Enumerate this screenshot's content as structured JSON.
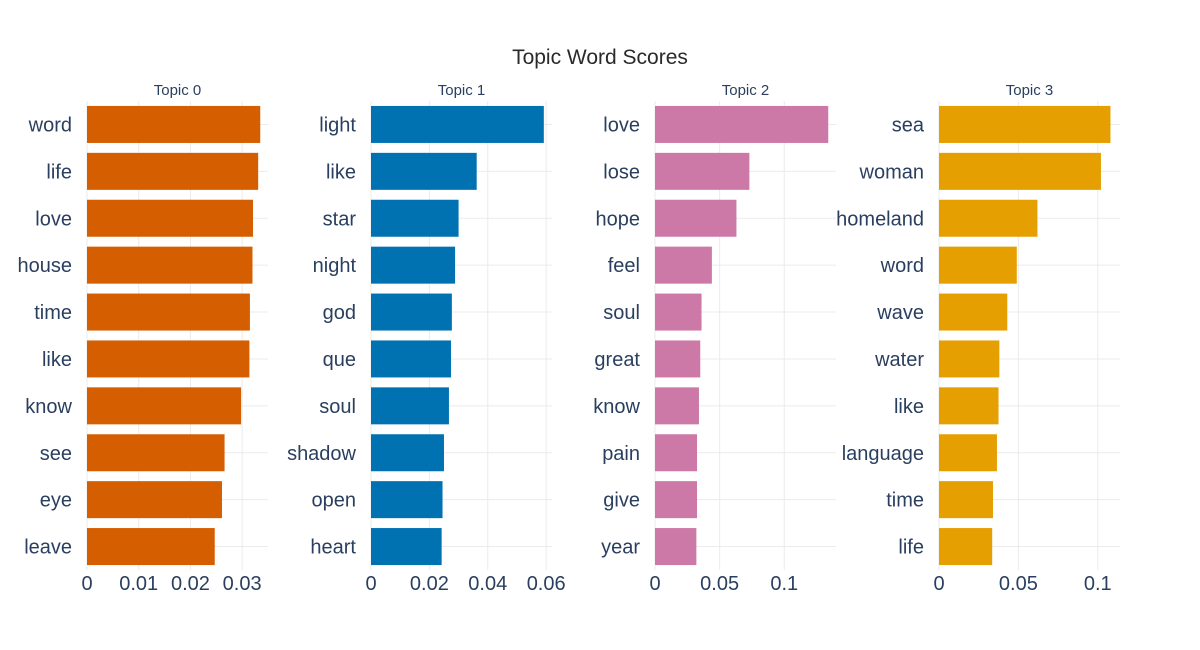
{
  "chart_data": {
    "type": "bar",
    "orientation": "horizontal",
    "title": "Topic Word Scores",
    "grid": true,
    "panels": [
      {
        "subtitle": "Topic 0",
        "color": "#D55E00",
        "categories": [
          "word",
          "life",
          "love",
          "house",
          "time",
          "like",
          "know",
          "see",
          "eye",
          "leave"
        ],
        "values": [
          0.0335,
          0.0331,
          0.0321,
          0.032,
          0.0315,
          0.0314,
          0.0298,
          0.0266,
          0.0261,
          0.0247
        ],
        "xlim": [
          0,
          0.035
        ],
        "xticks": [
          0,
          0.01,
          0.02,
          0.03
        ],
        "xtick_labels": [
          "0",
          "0.01",
          "0.02",
          "0.03"
        ]
      },
      {
        "subtitle": "Topic 1",
        "color": "#0072B2",
        "categories": [
          "light",
          "like",
          "star",
          "night",
          "god",
          "que",
          "soul",
          "shadow",
          "open",
          "heart"
        ],
        "values": [
          0.0592,
          0.0362,
          0.03,
          0.0288,
          0.0277,
          0.0274,
          0.0267,
          0.025,
          0.0245,
          0.0242
        ],
        "xlim": [
          0,
          0.062
        ],
        "xticks": [
          0,
          0.02,
          0.04,
          0.06
        ],
        "xtick_labels": [
          "0",
          "0.02",
          "0.04",
          "0.06"
        ]
      },
      {
        "subtitle": "Topic 2",
        "color": "#CC79A7",
        "categories": [
          "love",
          "lose",
          "hope",
          "feel",
          "soul",
          "great",
          "know",
          "pain",
          "give",
          "year"
        ],
        "values": [
          0.134,
          0.073,
          0.063,
          0.044,
          0.036,
          0.035,
          0.034,
          0.0325,
          0.0325,
          0.032
        ],
        "xlim": [
          0,
          0.14
        ],
        "xticks": [
          0,
          0.05,
          0.1
        ],
        "xtick_labels": [
          "0",
          "0.05",
          "0.1"
        ]
      },
      {
        "subtitle": "Topic 3",
        "color": "#E69F00",
        "categories": [
          "sea",
          "woman",
          "homeland",
          "word",
          "wave",
          "water",
          "like",
          "language",
          "time",
          "life"
        ],
        "values": [
          0.108,
          0.102,
          0.062,
          0.049,
          0.043,
          0.038,
          0.0375,
          0.0365,
          0.034,
          0.0335
        ],
        "xlim": [
          0,
          0.114
        ],
        "xticks": [
          0,
          0.05,
          0.1
        ],
        "xtick_labels": [
          "0",
          "0.05",
          "0.1"
        ]
      }
    ]
  }
}
